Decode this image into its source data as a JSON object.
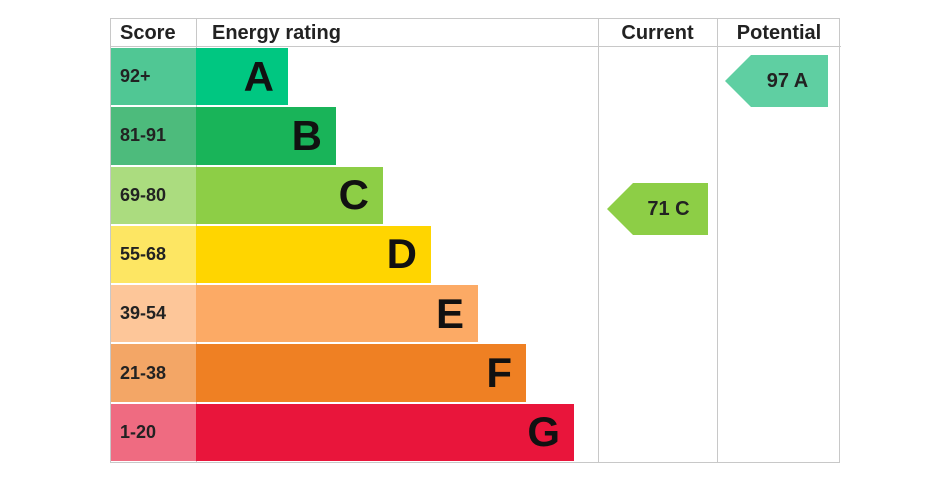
{
  "header": {
    "score": "Score",
    "rating": "Energy rating",
    "current": "Current",
    "potential": "Potential"
  },
  "bands": [
    {
      "score": "92+",
      "letter": "A",
      "color": "#00c781",
      "score_color": "#50c794"
    },
    {
      "score": "81-91",
      "letter": "B",
      "color": "#19b459",
      "score_color": "#4dbb7c"
    },
    {
      "score": "69-80",
      "letter": "C",
      "color": "#8dce46",
      "score_color": "#abdc7f"
    },
    {
      "score": "55-68",
      "letter": "D",
      "color": "#ffd500",
      "score_color": "#fde663"
    },
    {
      "score": "39-54",
      "letter": "E",
      "color": "#fcaa65",
      "score_color": "#fdc699"
    },
    {
      "score": "21-38",
      "letter": "F",
      "color": "#ef8023",
      "score_color": "#f3a666"
    },
    {
      "score": "1-20",
      "letter": "G",
      "color": "#e9153b",
      "score_color": "#ef6b81"
    }
  ],
  "current": {
    "label": "71 C",
    "color": "#8dce46"
  },
  "potential": {
    "label": "97 A",
    "color": "#5fcfa2"
  }
}
